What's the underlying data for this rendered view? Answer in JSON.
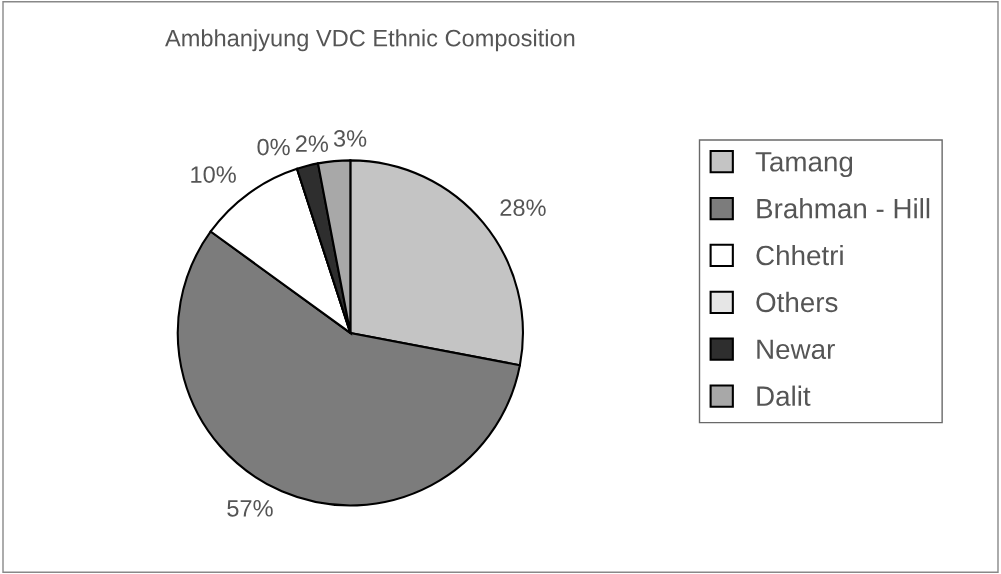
{
  "chart_data": {
    "type": "pie",
    "title": "Ambhanjyung VDC Ethnic Composition",
    "categories": [
      "Tamang",
      "Brahman - Hill",
      "Chhetri",
      "Others",
      "Newar",
      "Dalit"
    ],
    "values": [
      28,
      57,
      10,
      0,
      2,
      3
    ],
    "colors": [
      "#c4c4c4",
      "#7c7c7c",
      "#ffffff",
      "#e6e6e6",
      "#2e2e2e",
      "#a8a8a8"
    ],
    "value_labels": [
      "28%",
      "57%",
      "10%",
      "0%",
      "2%",
      "3%"
    ],
    "legend": "right"
  }
}
